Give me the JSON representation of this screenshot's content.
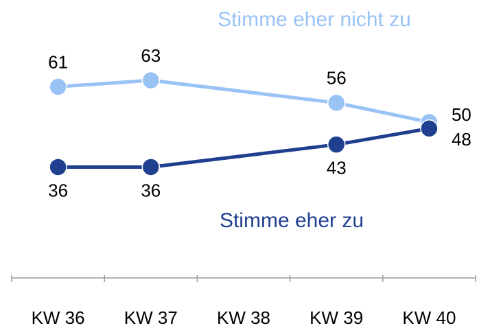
{
  "chart_data": {
    "type": "line",
    "x": [
      36,
      37,
      39,
      40
    ],
    "xlim": [
      35.5,
      40.5
    ],
    "xticks": [
      {
        "value": 36,
        "label": "KW 36"
      },
      {
        "value": 37,
        "label": "KW 37"
      },
      {
        "value": 38,
        "label": "KW 38"
      },
      {
        "value": 39,
        "label": "KW 39"
      },
      {
        "value": 40,
        "label": "KW 40"
      }
    ],
    "ylim": [
      0,
      88
    ],
    "series": [
      {
        "name": "Stimme eher nicht zu",
        "color": "#99c2f5",
        "values": [
          61,
          63,
          56,
          50
        ]
      },
      {
        "name": "Stimme eher zu",
        "color": "#1f3f8f",
        "values": [
          36,
          36,
          43,
          48
        ]
      }
    ]
  }
}
